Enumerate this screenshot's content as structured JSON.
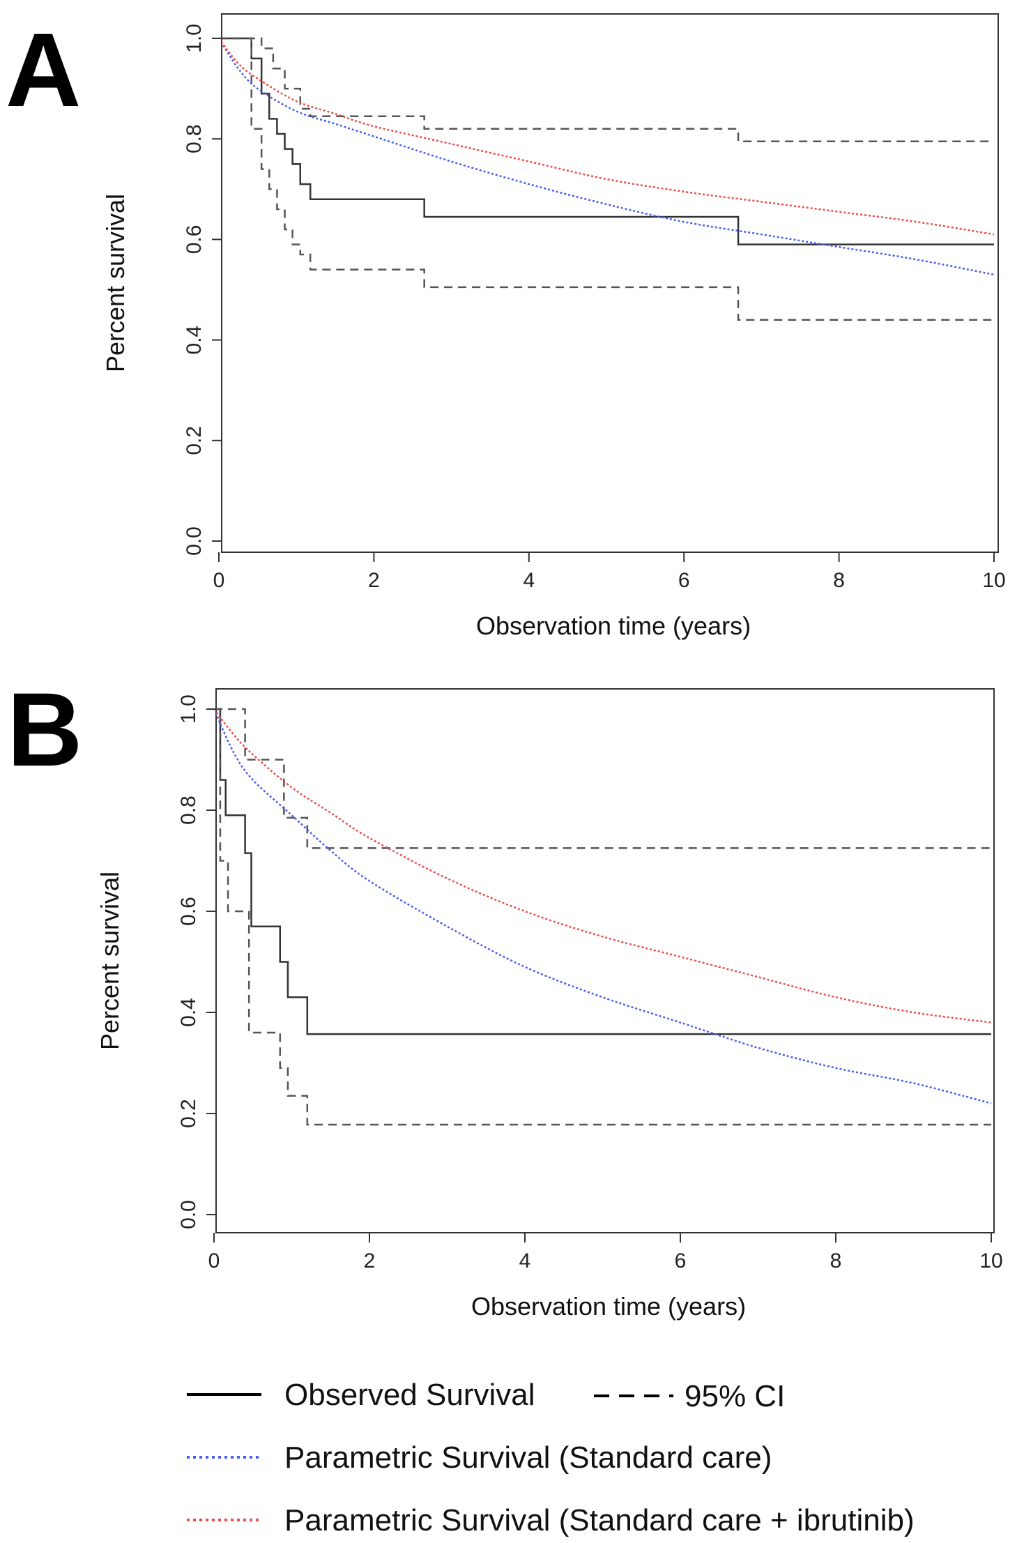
{
  "chart_data": [
    {
      "panel": "A",
      "type": "line",
      "xlabel": "Observation time (years)",
      "ylabel": "Percent survival",
      "xlim": [
        0,
        10
      ],
      "ylim": [
        0,
        1
      ],
      "xticks": [
        "0",
        "2",
        "4",
        "6",
        "8",
        "10"
      ],
      "yticks": [
        "0.0",
        "0.2",
        "0.4",
        "0.6",
        "0.8",
        "1.0"
      ],
      "grid": false,
      "series": [
        {
          "name": "Observed Survival",
          "style": "step",
          "dash": "solid",
          "color": "#333333",
          "x": [
            0,
            0.42,
            0.55,
            0.65,
            0.75,
            0.85,
            0.95,
            1.05,
            1.18,
            2.65,
            6.7,
            10
          ],
          "y": [
            1.0,
            0.96,
            0.89,
            0.84,
            0.81,
            0.78,
            0.75,
            0.71,
            0.68,
            0.645,
            0.59,
            0.59
          ]
        },
        {
          "name": "95% CI upper",
          "style": "step",
          "dash": "dashed",
          "color": "#555555",
          "x": [
            0,
            0.55,
            0.7,
            0.85,
            1.05,
            1.18,
            2.65,
            6.7,
            10
          ],
          "y": [
            1.0,
            0.98,
            0.94,
            0.9,
            0.86,
            0.845,
            0.82,
            0.795,
            0.795
          ]
        },
        {
          "name": "95% CI lower",
          "style": "step",
          "dash": "dashed",
          "color": "#555555",
          "x": [
            0,
            0.42,
            0.55,
            0.65,
            0.75,
            0.85,
            0.95,
            1.05,
            1.18,
            2.65,
            6.7,
            10
          ],
          "y": [
            1.0,
            0.82,
            0.74,
            0.7,
            0.66,
            0.62,
            0.59,
            0.57,
            0.54,
            0.505,
            0.44,
            0.44
          ]
        },
        {
          "name": "Parametric Survival (Standard care)",
          "style": "smooth",
          "dash": "dotted",
          "color": "#4a5ef0",
          "x": [
            0,
            0.25,
            0.5,
            1,
            1.5,
            2,
            3,
            4,
            5,
            6,
            7,
            8,
            9,
            10
          ],
          "y": [
            1.0,
            0.94,
            0.9,
            0.855,
            0.83,
            0.805,
            0.755,
            0.71,
            0.67,
            0.635,
            0.61,
            0.585,
            0.56,
            0.53
          ]
        },
        {
          "name": "Parametric Survival (Standard care + ibrutinib)",
          "style": "smooth",
          "dash": "dotted",
          "color": "#f04a4a",
          "x": [
            0,
            0.25,
            0.5,
            1,
            1.5,
            2,
            3,
            4,
            5,
            6,
            7,
            8,
            9,
            10
          ],
          "y": [
            1.0,
            0.95,
            0.92,
            0.875,
            0.85,
            0.825,
            0.79,
            0.755,
            0.72,
            0.695,
            0.675,
            0.655,
            0.635,
            0.61
          ]
        }
      ]
    },
    {
      "panel": "B",
      "type": "line",
      "xlabel": "Observation time (years)",
      "ylabel": "Percent survival",
      "xlim": [
        0,
        10
      ],
      "ylim": [
        0,
        1
      ],
      "xticks": [
        "0",
        "2",
        "4",
        "6",
        "8",
        "10"
      ],
      "yticks": [
        "0.0",
        "0.2",
        "0.4",
        "0.6",
        "0.8",
        "1.0"
      ],
      "grid": false,
      "series": [
        {
          "name": "Observed Survival",
          "style": "step",
          "dash": "solid",
          "color": "#333333",
          "x": [
            0,
            0.08,
            0.15,
            0.4,
            0.48,
            0.85,
            0.95,
            1.2,
            10
          ],
          "y": [
            1.0,
            0.86,
            0.79,
            0.715,
            0.57,
            0.5,
            0.43,
            0.357,
            0.357
          ]
        },
        {
          "name": "95% CI upper",
          "style": "step",
          "dash": "dashed",
          "color": "#555555",
          "x": [
            0,
            0.4,
            0.55,
            0.9,
            1.2,
            10
          ],
          "y": [
            1.0,
            0.9,
            0.9,
            0.785,
            0.725,
            0.725
          ]
        },
        {
          "name": "95% CI lower",
          "style": "step",
          "dash": "dashed",
          "color": "#555555",
          "x": [
            0,
            0.08,
            0.18,
            0.45,
            0.85,
            0.95,
            1.2,
            10
          ],
          "y": [
            1.0,
            0.7,
            0.6,
            0.36,
            0.29,
            0.235,
            0.178,
            0.178
          ]
        },
        {
          "name": "Parametric Survival (Standard care)",
          "style": "smooth",
          "dash": "dotted",
          "color": "#4a5ef0",
          "x": [
            0,
            0.25,
            0.5,
            1,
            1.5,
            2,
            3,
            4,
            5,
            6,
            7,
            8,
            9,
            10
          ],
          "y": [
            1.0,
            0.915,
            0.86,
            0.79,
            0.72,
            0.66,
            0.57,
            0.49,
            0.43,
            0.38,
            0.33,
            0.29,
            0.26,
            0.22
          ]
        },
        {
          "name": "Parametric Survival (Standard care + ibrutinib)",
          "style": "smooth",
          "dash": "dotted",
          "color": "#f04a4a",
          "x": [
            0,
            0.25,
            0.5,
            1,
            1.5,
            2,
            3,
            4,
            5,
            6,
            7,
            8,
            9,
            10
          ],
          "y": [
            1.0,
            0.95,
            0.91,
            0.845,
            0.795,
            0.745,
            0.665,
            0.6,
            0.55,
            0.51,
            0.47,
            0.43,
            0.4,
            0.38
          ]
        }
      ]
    }
  ],
  "legend": {
    "placement": "bottom",
    "items": [
      {
        "label": "Observed Survival",
        "dash": "solid",
        "color": "#000000"
      },
      {
        "label": "95% CI",
        "dash": "dashed",
        "color": "#000000"
      },
      {
        "label": "Parametric Survival (Standard care)",
        "dash": "dotted",
        "color": "#4a5ef0"
      },
      {
        "label": "Parametric Survival (Standard care + ibrutinib)",
        "dash": "dotted",
        "color": "#f04a4a"
      }
    ]
  }
}
